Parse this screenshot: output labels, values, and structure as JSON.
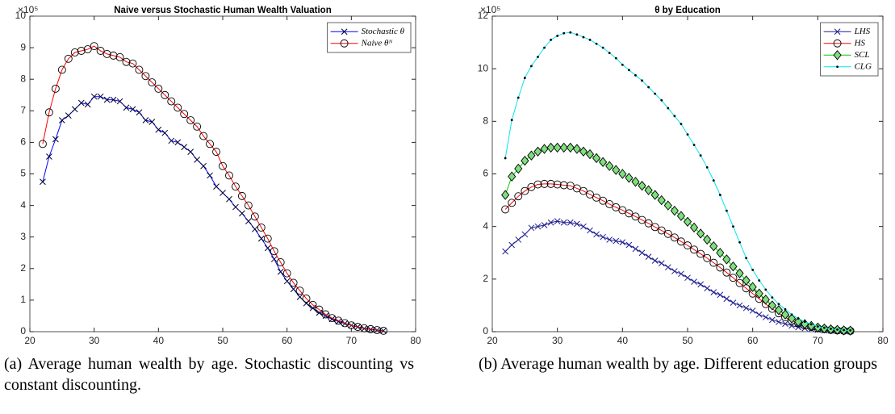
{
  "chart_data": [
    {
      "type": "line",
      "title": "Naive versus Stochastic Human Wealth Valuation",
      "y_scale_label": "×10⁵",
      "x": [
        22,
        23,
        24,
        25,
        26,
        27,
        28,
        29,
        30,
        31,
        32,
        33,
        34,
        35,
        36,
        37,
        38,
        39,
        40,
        41,
        42,
        43,
        44,
        45,
        46,
        47,
        48,
        49,
        50,
        51,
        52,
        53,
        54,
        55,
        56,
        57,
        58,
        59,
        60,
        61,
        62,
        63,
        64,
        65,
        66,
        67,
        68,
        69,
        70,
        71,
        72,
        73,
        74,
        75
      ],
      "xlim": [
        20,
        80
      ],
      "xticks": [
        20,
        30,
        40,
        50,
        60,
        70,
        80
      ],
      "ylim": [
        0,
        10
      ],
      "yticks": [
        0,
        1,
        2,
        3,
        4,
        5,
        6,
        7,
        8,
        9,
        10
      ],
      "legend": "top-right",
      "series": [
        {
          "name": "Stochastic θ",
          "color": "#0000ff",
          "marker": "x",
          "marker_color": "#000033",
          "values": [
            4.75,
            5.55,
            6.1,
            6.7,
            6.85,
            7.05,
            7.25,
            7.2,
            7.45,
            7.45,
            7.35,
            7.35,
            7.3,
            7.1,
            7.05,
            6.95,
            6.7,
            6.65,
            6.4,
            6.3,
            6.05,
            6.0,
            5.85,
            5.7,
            5.45,
            5.25,
            4.95,
            4.6,
            4.4,
            4.2,
            3.95,
            3.75,
            3.5,
            3.25,
            2.95,
            2.65,
            2.3,
            1.9,
            1.6,
            1.35,
            1.1,
            0.9,
            0.75,
            0.6,
            0.5,
            0.4,
            0.32,
            0.26,
            0.2,
            0.15,
            0.1,
            0.07,
            0.05,
            0.03
          ]
        },
        {
          "name": "Naive θᴺ",
          "color": "#ff0000",
          "marker": "o",
          "marker_color": "#000000",
          "values": [
            5.95,
            6.95,
            7.7,
            8.3,
            8.65,
            8.85,
            8.9,
            8.95,
            9.05,
            8.9,
            8.8,
            8.75,
            8.7,
            8.55,
            8.5,
            8.3,
            8.1,
            7.9,
            7.7,
            7.5,
            7.3,
            7.1,
            6.9,
            6.7,
            6.5,
            6.2,
            5.95,
            5.7,
            5.25,
            4.95,
            4.6,
            4.3,
            4.0,
            3.65,
            3.3,
            2.95,
            2.55,
            2.2,
            1.85,
            1.55,
            1.3,
            1.05,
            0.85,
            0.7,
            0.55,
            0.43,
            0.35,
            0.27,
            0.2,
            0.15,
            0.11,
            0.08,
            0.05,
            0.03
          ]
        }
      ],
      "caption": "(a) Average human wealth by age. Stochastic discounting vs constant discounting."
    },
    {
      "type": "line",
      "title": "θ by Education",
      "y_scale_label": "×10⁵",
      "x": [
        22,
        23,
        24,
        25,
        26,
        27,
        28,
        29,
        30,
        31,
        32,
        33,
        34,
        35,
        36,
        37,
        38,
        39,
        40,
        41,
        42,
        43,
        44,
        45,
        46,
        47,
        48,
        49,
        50,
        51,
        52,
        53,
        54,
        55,
        56,
        57,
        58,
        59,
        60,
        61,
        62,
        63,
        64,
        65,
        66,
        67,
        68,
        69,
        70,
        71,
        72,
        73,
        74,
        75
      ],
      "xlim": [
        20,
        80
      ],
      "xticks": [
        20,
        30,
        40,
        50,
        60,
        70,
        80
      ],
      "ylim": [
        0,
        12
      ],
      "yticks": [
        0,
        2,
        4,
        6,
        8,
        10,
        12
      ],
      "legend": "top-right",
      "series": [
        {
          "name": "LHS",
          "color": "#1f1f8f",
          "marker": "x",
          "marker_color": "#1f1f8f",
          "values": [
            3.05,
            3.3,
            3.5,
            3.7,
            3.95,
            4.0,
            4.05,
            4.15,
            4.2,
            4.15,
            4.15,
            4.1,
            4.0,
            3.85,
            3.7,
            3.6,
            3.5,
            3.45,
            3.4,
            3.3,
            3.15,
            3.0,
            2.85,
            2.7,
            2.6,
            2.45,
            2.3,
            2.2,
            2.05,
            1.9,
            1.8,
            1.65,
            1.5,
            1.4,
            1.25,
            1.1,
            1.0,
            0.9,
            0.8,
            0.65,
            0.55,
            0.45,
            0.37,
            0.3,
            0.23,
            0.17,
            0.13,
            0.1,
            0.07,
            0.05,
            0.04,
            0.03,
            0.02,
            0.01
          ]
        },
        {
          "name": "HS",
          "color": "#ff0000",
          "marker": "o",
          "marker_color": "#000000",
          "values": [
            4.65,
            4.9,
            5.15,
            5.35,
            5.5,
            5.6,
            5.62,
            5.62,
            5.6,
            5.57,
            5.55,
            5.45,
            5.35,
            5.22,
            5.1,
            4.98,
            4.85,
            4.73,
            4.62,
            4.5,
            4.38,
            4.25,
            4.12,
            3.98,
            3.85,
            3.72,
            3.58,
            3.43,
            3.28,
            3.12,
            2.96,
            2.8,
            2.62,
            2.44,
            2.25,
            2.05,
            1.85,
            1.65,
            1.45,
            1.25,
            1.05,
            0.87,
            0.7,
            0.55,
            0.42,
            0.32,
            0.24,
            0.18,
            0.13,
            0.1,
            0.07,
            0.05,
            0.04,
            0.03
          ]
        },
        {
          "name": "SCL",
          "color": "#00cc00",
          "marker": "diamond",
          "marker_color": "#000000",
          "marker_fill": "#7fdf7f",
          "values": [
            5.2,
            5.9,
            6.2,
            6.5,
            6.7,
            6.85,
            6.95,
            7.0,
            7.0,
            7.0,
            7.0,
            6.95,
            6.85,
            6.75,
            6.6,
            6.45,
            6.3,
            6.15,
            6.0,
            5.85,
            5.7,
            5.55,
            5.38,
            5.2,
            5.0,
            4.8,
            4.6,
            4.4,
            4.18,
            3.96,
            3.73,
            3.5,
            3.25,
            3.0,
            2.75,
            2.48,
            2.22,
            1.95,
            1.7,
            1.45,
            1.22,
            1.0,
            0.82,
            0.65,
            0.5,
            0.38,
            0.29,
            0.22,
            0.16,
            0.12,
            0.09,
            0.07,
            0.05,
            0.04
          ]
        },
        {
          "name": "CLG",
          "color": "#00e5ee",
          "marker": "dot",
          "marker_color": "#000000",
          "values": [
            6.6,
            8.05,
            8.9,
            9.65,
            10.1,
            10.45,
            10.8,
            11.1,
            11.25,
            11.35,
            11.38,
            11.3,
            11.2,
            11.1,
            10.95,
            10.8,
            10.6,
            10.4,
            10.15,
            9.95,
            9.75,
            9.55,
            9.3,
            9.05,
            8.8,
            8.5,
            8.2,
            7.9,
            7.5,
            7.1,
            6.7,
            6.25,
            5.75,
            5.2,
            4.6,
            4.0,
            3.4,
            2.8,
            2.35,
            1.95,
            1.6,
            1.3,
            1.05,
            0.85,
            0.65,
            0.5,
            0.38,
            0.28,
            0.2,
            0.15,
            0.11,
            0.08,
            0.06,
            0.05
          ]
        }
      ],
      "caption": "(b) Average human wealth by age. Different education groups"
    }
  ]
}
